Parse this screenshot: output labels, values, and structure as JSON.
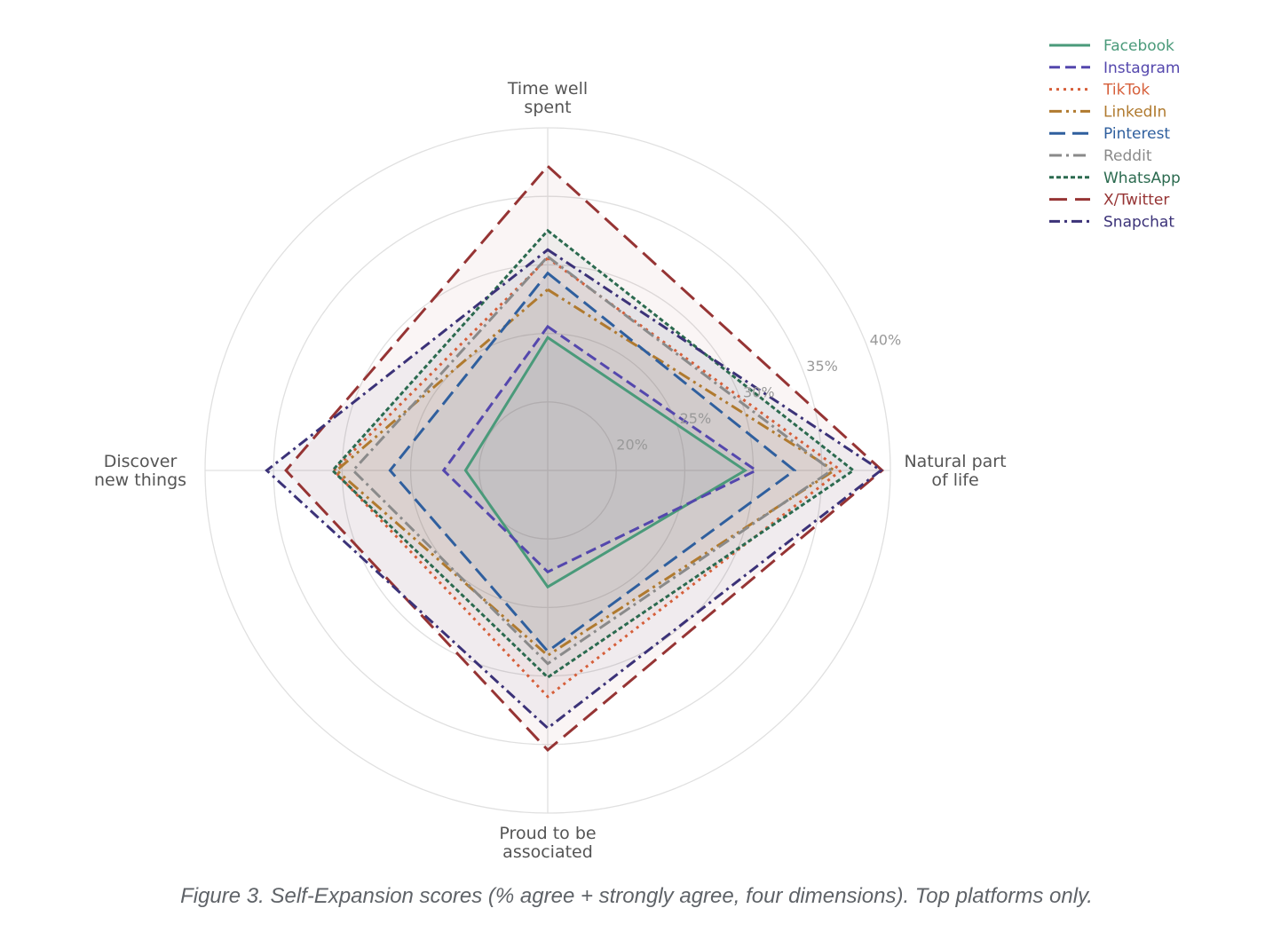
{
  "caption": "Figure 3. Self-Expansion scores (% agree + strongly agree, four dimensions). Top platforms only.",
  "chart_data": {
    "type": "radar",
    "axes": [
      {
        "key": "time",
        "label": [
          "Time well",
          "spent"
        ]
      },
      {
        "key": "natural",
        "label": [
          "Natural part",
          "of life"
        ]
      },
      {
        "key": "proud",
        "label": [
          "Proud to be",
          "associated"
        ]
      },
      {
        "key": "discover",
        "label": [
          "Discover",
          "new things"
        ]
      }
    ],
    "r_min": 15,
    "r_max": 40,
    "ticks": [
      20,
      25,
      30,
      35,
      40
    ],
    "tick_labels": [
      "20%",
      "25%",
      "30%",
      "35%",
      "40%"
    ],
    "grid": true,
    "legend_position": "top-right",
    "series": [
      {
        "name": "Facebook",
        "color": "#4a9a7a",
        "dash": "solid",
        "values": {
          "time": 24.7,
          "natural": 29.4,
          "proud": 23.5,
          "discover": 21.0
        }
      },
      {
        "name": "Instagram",
        "color": "#5447ad",
        "dash": "dash",
        "values": {
          "time": 25.5,
          "natural": 30.2,
          "proud": 22.4,
          "discover": 22.6
        }
      },
      {
        "name": "TikTok",
        "color": "#d65f3a",
        "dash": "dot",
        "values": {
          "time": 30.5,
          "natural": 36.4,
          "proud": 31.5,
          "discover": 30.6
        }
      },
      {
        "name": "LinkedIn",
        "color": "#b07a2f",
        "dash": "dashdotdot",
        "values": {
          "time": 28.2,
          "natural": 35.9,
          "proud": 28.5,
          "discover": 30.4
        }
      },
      {
        "name": "Pinterest",
        "color": "#2f5f9e",
        "dash": "longdash",
        "values": {
          "time": 29.4,
          "natural": 33.0,
          "proud": 28.2,
          "discover": 26.5
        }
      },
      {
        "name": "Reddit",
        "color": "#8a8a8a",
        "dash": "dashdot",
        "values": {
          "time": 30.6,
          "natural": 35.7,
          "proud": 29.1,
          "discover": 29.2
        }
      },
      {
        "name": "WhatsApp",
        "color": "#2b6a4f",
        "dash": "shortdash",
        "values": {
          "time": 32.5,
          "natural": 37.3,
          "proud": 30.1,
          "discover": 30.7
        }
      },
      {
        "name": "X/Twitter",
        "color": "#963434",
        "dash": "longdash2",
        "values": {
          "time": 37.2,
          "natural": 39.4,
          "proud": 35.4,
          "discover": 34.1
        }
      },
      {
        "name": "Snapchat",
        "color": "#3b3278",
        "dash": "dashdot2",
        "values": {
          "time": 31.1,
          "natural": 39.3,
          "proud": 33.8,
          "discover": 35.5
        }
      }
    ]
  }
}
